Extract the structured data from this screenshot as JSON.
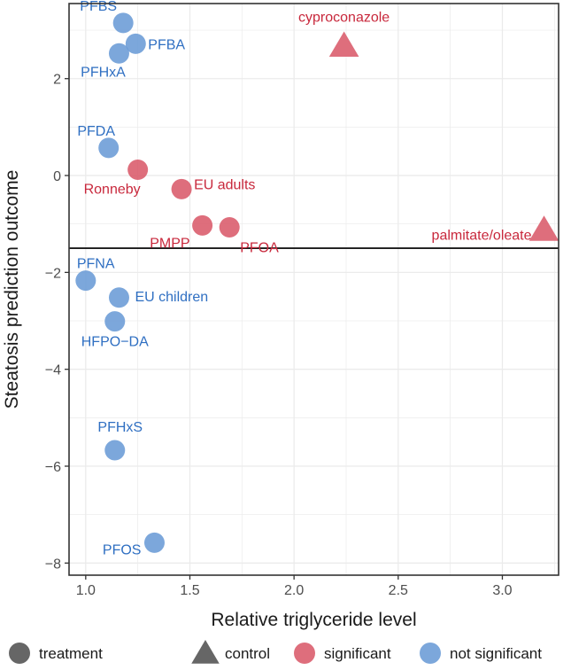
{
  "chart_data": {
    "type": "scatter",
    "title": "",
    "xlabel": "Relative triglyceride level",
    "ylabel": "Steatosis prediction outcome",
    "xlim": [
      0.92,
      3.27
    ],
    "ylim": [
      -8.25,
      3.55
    ],
    "xticks": [
      1.0,
      1.5,
      2.0,
      2.5,
      3.0
    ],
    "xtick_labels": [
      "1.0",
      "1.5",
      "2.0",
      "2.5",
      "3.0"
    ],
    "yticks": [
      -8,
      -6,
      -4,
      -2,
      0,
      2
    ],
    "ytick_labels": [
      "−8",
      "−6",
      "−4",
      "−2",
      "0",
      "2"
    ],
    "threshold_y": -1.5,
    "grid": true,
    "colors": {
      "significant": "#d95a6a",
      "not_significant": "#6a9bd6",
      "significant_text": "#c8283c",
      "not_significant_text": "#2f6fc2"
    },
    "points": [
      {
        "label": "PFBS",
        "x": 1.18,
        "y": 3.15,
        "shape": "circle",
        "significance": "not significant"
      },
      {
        "label": "PFBA",
        "x": 1.24,
        "y": 2.72,
        "shape": "circle",
        "significance": "not significant"
      },
      {
        "label": "PFHxA",
        "x": 1.16,
        "y": 2.52,
        "shape": "circle",
        "significance": "not significant"
      },
      {
        "label": "cyproconazole",
        "x": 2.24,
        "y": 2.68,
        "shape": "triangle",
        "significance": "significant"
      },
      {
        "label": "PFDA",
        "x": 1.11,
        "y": 0.57,
        "shape": "circle",
        "significance": "not significant"
      },
      {
        "label": "Ronneby",
        "x": 1.25,
        "y": 0.12,
        "shape": "circle",
        "significance": "significant"
      },
      {
        "label": "EU adults",
        "x": 1.46,
        "y": -0.28,
        "shape": "circle",
        "significance": "significant"
      },
      {
        "label": "PMPP",
        "x": 1.56,
        "y": -1.03,
        "shape": "circle",
        "significance": "significant"
      },
      {
        "label": "PFOA",
        "x": 1.69,
        "y": -1.07,
        "shape": "circle",
        "significance": "significant"
      },
      {
        "label": "palmitate/oleate",
        "x": 3.2,
        "y": -1.12,
        "shape": "triangle",
        "significance": "significant"
      },
      {
        "label": "PFNA",
        "x": 1.0,
        "y": -2.17,
        "shape": "circle",
        "significance": "not significant"
      },
      {
        "label": "EU children",
        "x": 1.16,
        "y": -2.52,
        "shape": "circle",
        "significance": "not significant"
      },
      {
        "label": "HFPO−DA",
        "x": 1.14,
        "y": -3.01,
        "shape": "circle",
        "significance": "not significant"
      },
      {
        "label": "PFHxS",
        "x": 1.14,
        "y": -5.67,
        "shape": "circle",
        "significance": "not significant"
      },
      {
        "label": "PFOS",
        "x": 1.33,
        "y": -7.58,
        "shape": "circle",
        "significance": "not significant"
      }
    ],
    "legend": {
      "position": "bottom",
      "items": [
        {
          "label": "treatment",
          "shape": "circle",
          "color": "#666666"
        },
        {
          "label": "control",
          "shape": "triangle",
          "color": "#666666"
        },
        {
          "label": "significant",
          "shape": "circle",
          "color": "#d95a6a"
        },
        {
          "label": "not significant",
          "shape": "circle",
          "color": "#6a9bd6"
        }
      ]
    }
  }
}
